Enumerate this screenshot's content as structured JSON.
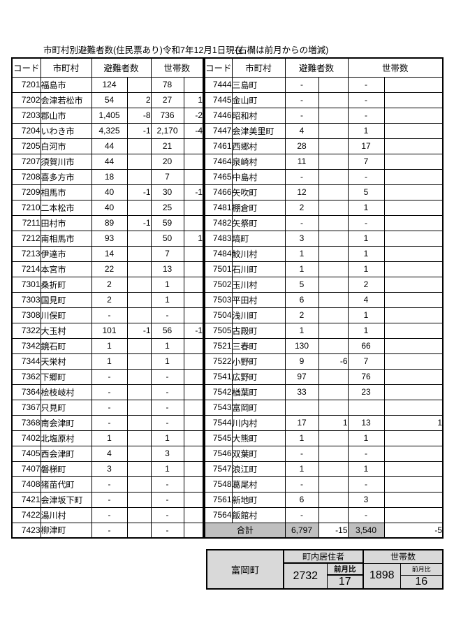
{
  "title": {
    "main": "市町村別避難者数(住民票あり)",
    "date": "令和7年12月1日現在",
    "note": "(右欄は前月からの増減)"
  },
  "table_headers": {
    "code": "コード",
    "municipality": "市町村",
    "evacuees": "避難者数",
    "households": "世帯数"
  },
  "left_rows": [
    [
      "7201",
      "福島市",
      "124",
      "",
      "78",
      ""
    ],
    [
      "7202",
      "会津若松市",
      "54",
      "2",
      "27",
      "1"
    ],
    [
      "7203",
      "郡山市",
      "1,405",
      "-8",
      "736",
      "-2"
    ],
    [
      "7204",
      "いわき市",
      "4,325",
      "-1",
      "2,170",
      "-4"
    ],
    [
      "7205",
      "白河市",
      "44",
      "",
      "21",
      ""
    ],
    [
      "7207",
      "須賀川市",
      "44",
      "",
      "20",
      ""
    ],
    [
      "7208",
      "喜多方市",
      "18",
      "",
      "7",
      ""
    ],
    [
      "7209",
      "相馬市",
      "40",
      "-1",
      "30",
      "-1"
    ],
    [
      "7210",
      "二本松市",
      "40",
      "",
      "25",
      ""
    ],
    [
      "7211",
      "田村市",
      "89",
      "-1",
      "59",
      ""
    ],
    [
      "7212",
      "南相馬市",
      "93",
      "",
      "50",
      "1"
    ],
    [
      "7213",
      "伊達市",
      "14",
      "",
      "7",
      ""
    ],
    [
      "7214",
      "本宮市",
      "22",
      "",
      "13",
      ""
    ],
    [
      "7301",
      "桑折町",
      "2",
      "",
      "1",
      ""
    ],
    [
      "7303",
      "国見町",
      "2",
      "",
      "1",
      ""
    ],
    [
      "7308",
      "川俣町",
      "-",
      "",
      "-",
      ""
    ],
    [
      "7322",
      "大玉村",
      "101",
      "-1",
      "56",
      "-1"
    ],
    [
      "7342",
      "鏡石町",
      "1",
      "",
      "1",
      ""
    ],
    [
      "7344",
      "天栄村",
      "1",
      "",
      "1",
      ""
    ],
    [
      "7362",
      "下郷町",
      "-",
      "",
      "-",
      ""
    ],
    [
      "7364",
      "桧枝岐村",
      "-",
      "",
      "-",
      ""
    ],
    [
      "7367",
      "只見町",
      "-",
      "",
      "-",
      ""
    ],
    [
      "7368",
      "南会津町",
      "-",
      "",
      "-",
      ""
    ],
    [
      "7402",
      "北塩原村",
      "1",
      "",
      "1",
      ""
    ],
    [
      "7405",
      "西会津町",
      "4",
      "",
      "3",
      ""
    ],
    [
      "7407",
      "磐梯町",
      "3",
      "",
      "1",
      ""
    ],
    [
      "7408",
      "猪苗代町",
      "-",
      "",
      "-",
      ""
    ],
    [
      "7421",
      "会津坂下町",
      "-",
      "",
      "-",
      ""
    ],
    [
      "7422",
      "湯川村",
      "-",
      "",
      "-",
      ""
    ],
    [
      "7423",
      "柳津町",
      "-",
      "",
      "-",
      ""
    ]
  ],
  "right_rows": [
    [
      "7444",
      "三島町",
      "-",
      "",
      "-",
      ""
    ],
    [
      "7445",
      "金山町",
      "-",
      "",
      "-",
      ""
    ],
    [
      "7446",
      "昭和村",
      "-",
      "",
      "-",
      ""
    ],
    [
      "7447",
      "会津美里町",
      "4",
      "",
      "1",
      ""
    ],
    [
      "7461",
      "西郷村",
      "28",
      "",
      "17",
      ""
    ],
    [
      "7464",
      "泉崎村",
      "11",
      "",
      "7",
      ""
    ],
    [
      "7465",
      "中島村",
      "-",
      "",
      "-",
      ""
    ],
    [
      "7466",
      "矢吹町",
      "12",
      "",
      "5",
      ""
    ],
    [
      "7481",
      "棚倉町",
      "2",
      "",
      "1",
      ""
    ],
    [
      "7482",
      "矢祭町",
      "-",
      "",
      "-",
      ""
    ],
    [
      "7483",
      "塙町",
      "3",
      "",
      "1",
      ""
    ],
    [
      "7484",
      "鮫川村",
      "1",
      "",
      "1",
      ""
    ],
    [
      "7501",
      "石川町",
      "1",
      "",
      "1",
      ""
    ],
    [
      "7502",
      "玉川村",
      "5",
      "",
      "2",
      ""
    ],
    [
      "7503",
      "平田村",
      "6",
      "",
      "4",
      ""
    ],
    [
      "7504",
      "浅川町",
      "2",
      "",
      "1",
      ""
    ],
    [
      "7505",
      "古殿町",
      "1",
      "",
      "1",
      ""
    ],
    [
      "7521",
      "三春町",
      "130",
      "",
      "66",
      ""
    ],
    [
      "7522",
      "小野町",
      "9",
      "-6",
      "7",
      ""
    ],
    [
      "7541",
      "広野町",
      "97",
      "",
      "76",
      ""
    ],
    [
      "7542",
      "楢葉町",
      "33",
      "",
      "23",
      ""
    ],
    [
      "7543",
      "富岡町",
      "",
      "",
      "",
      ""
    ],
    [
      "7544",
      "川内村",
      "17",
      "1",
      "13",
      "1"
    ],
    [
      "7545",
      "大熊町",
      "1",
      "",
      "1",
      ""
    ],
    [
      "7546",
      "双葉町",
      "-",
      "",
      "-",
      ""
    ],
    [
      "7547",
      "浪江町",
      "1",
      "",
      "1",
      ""
    ],
    [
      "7548",
      "葛尾村",
      "-",
      "",
      "-",
      ""
    ],
    [
      "7561",
      "新地町",
      "6",
      "",
      "3",
      ""
    ],
    [
      "7564",
      "飯館村",
      "-",
      "",
      "-",
      ""
    ]
  ],
  "total_row": {
    "label": "合計",
    "evacuees": "6,797",
    "evacuees_delta": "-15",
    "households": "3,540",
    "households_delta": "-5"
  },
  "summary": {
    "town": "富岡町",
    "residents_header": "町内居住者",
    "households_header": "世帯数",
    "mom_label": "前月比",
    "residents": "2732",
    "residents_delta": "17",
    "households": "1898",
    "households_delta": "16"
  },
  "colors": {
    "total_bg": "#bfbfbf",
    "summary_bg": "#d9d9d9",
    "border": "#000000"
  }
}
